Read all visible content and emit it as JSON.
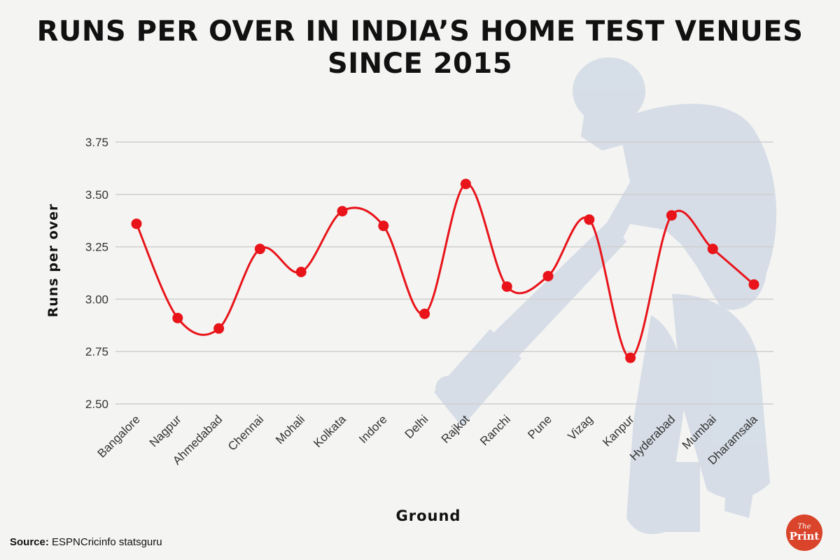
{
  "title_line1": "RUNS PER OVER IN INDIA’S HOME TEST VENUES",
  "title_line2": "SINCE 2015",
  "chart_data": {
    "type": "line",
    "smooth": true,
    "categories": [
      "Bangalore",
      "Nagpur",
      "Ahmedabad",
      "Chennai",
      "Mohali",
      "Kolkata",
      "Indore",
      "Delhi",
      "Rajkot",
      "Ranchi",
      "Pune",
      "Vizag",
      "Kanpur",
      "Hyderabad",
      "Mumbai",
      "Dharamsala"
    ],
    "values": [
      3.36,
      2.91,
      2.86,
      3.24,
      3.13,
      3.42,
      3.35,
      2.93,
      3.55,
      3.06,
      3.11,
      3.38,
      2.72,
      3.4,
      3.24,
      3.07
    ],
    "xlabel": "Ground",
    "ylabel": "Runs per over",
    "ylim": [
      2.5,
      3.75
    ],
    "yticks": [
      "3.75",
      "3.50",
      "3.25",
      "3.00",
      "2.75",
      "2.50"
    ],
    "grid": true,
    "line_color": "#e8141a"
  },
  "source_label": "Source:",
  "source_text": "ESPNCricinfo statsguru",
  "logo": {
    "top": "The",
    "bottom": "Print"
  },
  "watermark_icon": "cricket-batsman-silhouette-icon"
}
